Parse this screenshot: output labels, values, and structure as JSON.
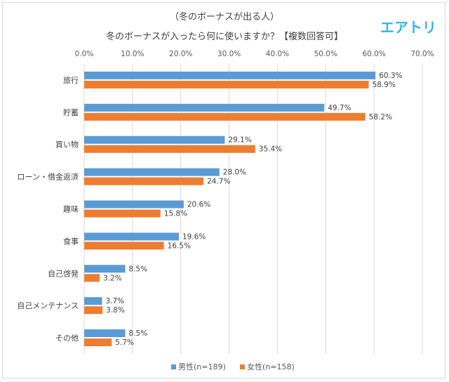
{
  "logo": "エアトリ",
  "chart_data": {
    "type": "bar",
    "orientation": "horizontal",
    "title": "（冬のボーナスが出る人）",
    "subtitle": "冬のボーナスが入ったら何に使いますか？【複数回答可】",
    "categories": [
      "旅行",
      "貯蓄",
      "買い物",
      "ローン・借金返済",
      "趣味",
      "食事",
      "自己啓発",
      "自己メンテナンス",
      "その他"
    ],
    "series": [
      {
        "name": "男性(n=189)",
        "color": "#5b9bd5",
        "values": [
          60.3,
          49.7,
          29.1,
          28.0,
          20.6,
          19.6,
          8.5,
          3.7,
          8.5
        ]
      },
      {
        "name": "女性(n=158)",
        "color": "#ed7d31",
        "values": [
          58.9,
          58.2,
          35.4,
          24.7,
          15.8,
          16.5,
          3.2,
          3.8,
          5.7
        ]
      }
    ],
    "xlim": [
      0,
      70
    ],
    "ticks": [
      0,
      10,
      20,
      30,
      40,
      50,
      60,
      70
    ],
    "tick_format": "0.0%",
    "grid": true,
    "legend_position": "bottom"
  }
}
